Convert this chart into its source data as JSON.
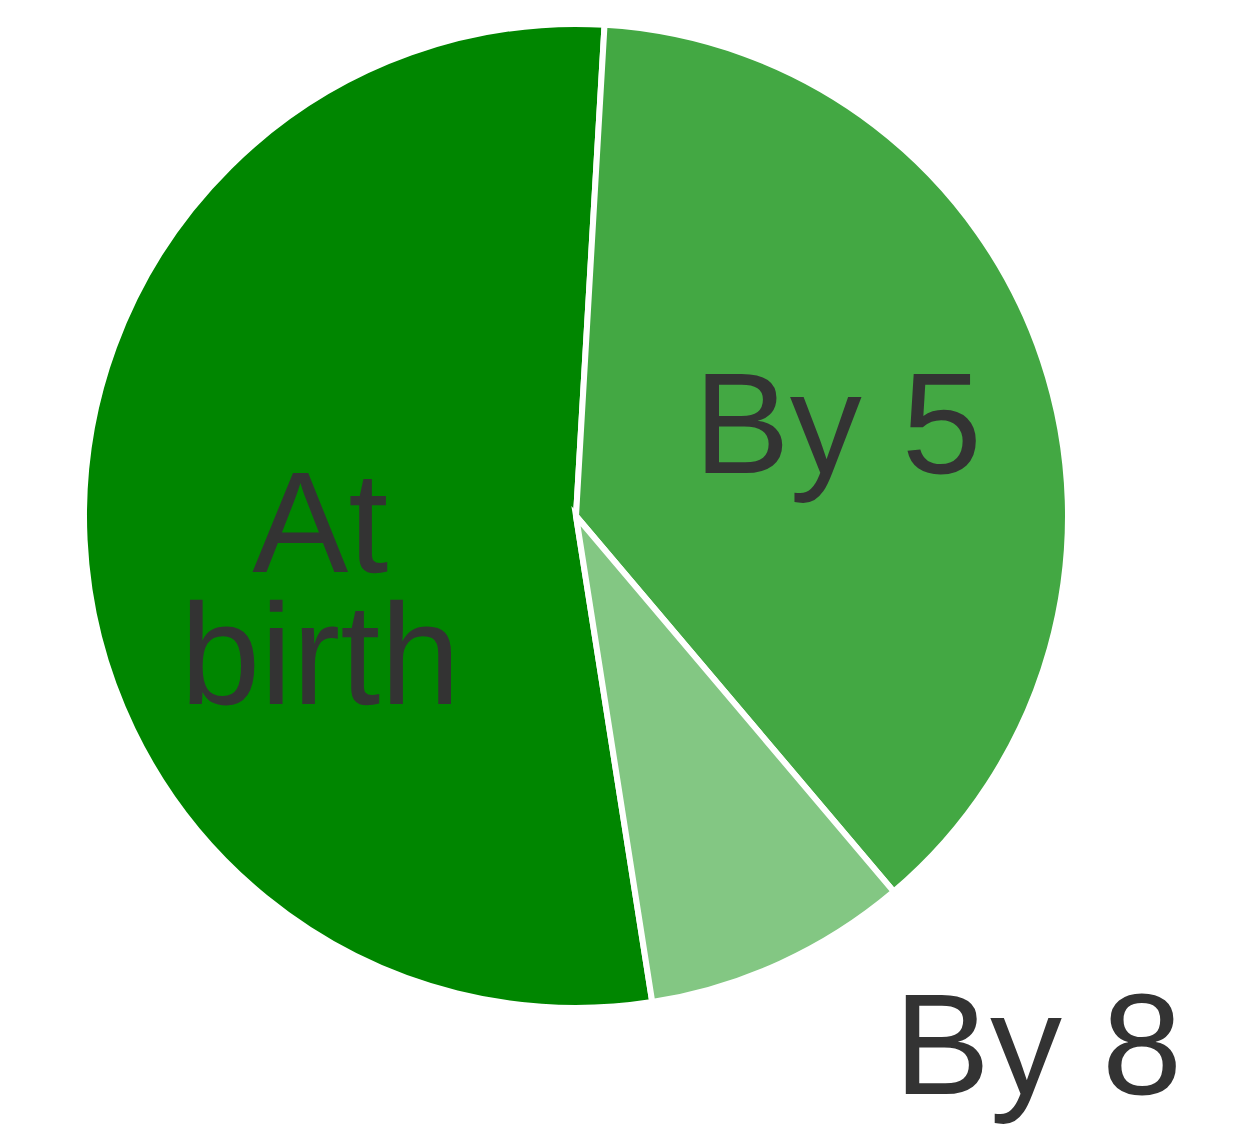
{
  "chart_data": {
    "type": "pie",
    "categories": [
      "At birth",
      "By 5",
      "By 8"
    ],
    "values": [
      53.4,
      37.9,
      8.7
    ],
    "colors": [
      "#008600",
      "#43a843",
      "#83c783"
    ]
  }
}
